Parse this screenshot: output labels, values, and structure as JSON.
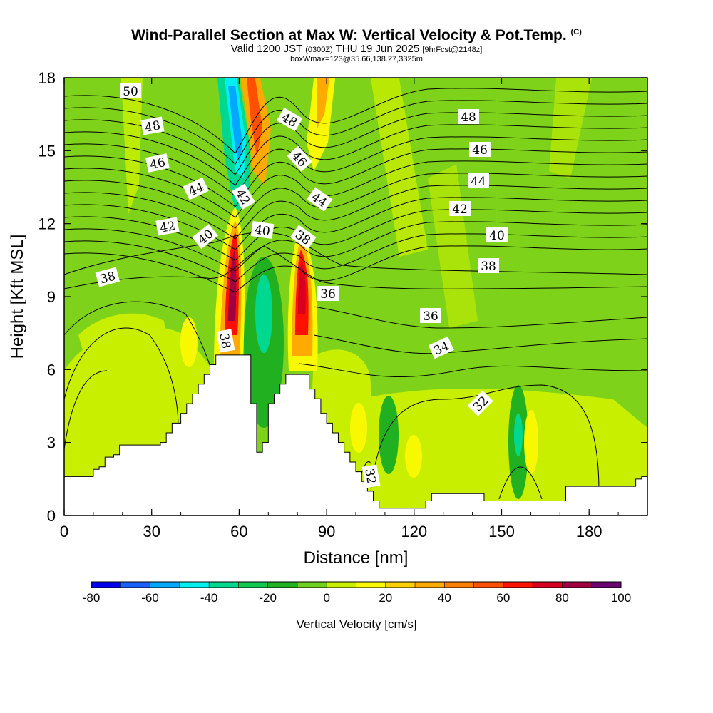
{
  "header": {
    "title": "Wind-Parallel Section at Max W: Vertical Velocity & Pot.Temp.",
    "copyright": "(C)",
    "valid_prefix": "Valid 1200 JST",
    "valid_utc": "(0300Z)",
    "valid_date": "THU 19 Jun 2025",
    "forecast": "[9hrFcst@2148z]",
    "box_info": "boxWmax=123@35.66,138.27,3325m"
  },
  "chart_data": {
    "type": "heatmap",
    "title": "Wind-Parallel Section at Max W: Vertical Velocity & Pot.Temp.",
    "xlabel": "Distance [nm]",
    "ylabel": "Height [Kft MSL]",
    "xlim": [
      0,
      200
    ],
    "ylim": [
      0,
      18
    ],
    "x_ticks": [
      "0",
      "30",
      "60",
      "90",
      "120",
      "150",
      "180"
    ],
    "x_tick_values": [
      0,
      30,
      60,
      90,
      120,
      150,
      180
    ],
    "y_ticks": [
      "0",
      "3",
      "6",
      "9",
      "12",
      "15",
      "18"
    ],
    "y_tick_values": [
      0,
      3,
      6,
      9,
      12,
      15,
      18
    ],
    "colorbar": {
      "label": "Vertical Velocity [cm/s]",
      "tick_labels": [
        "-80",
        "-60",
        "-40",
        "-20",
        "0",
        "20",
        "40",
        "60",
        "80",
        "100"
      ],
      "levels": [
        -80,
        -70,
        -60,
        -50,
        -40,
        -30,
        -20,
        -10,
        0,
        10,
        20,
        30,
        40,
        50,
        60,
        70,
        80,
        90,
        100
      ],
      "colors": [
        "#0000f0",
        "#1a60ff",
        "#00a8ff",
        "#00f0f0",
        "#00d890",
        "#10c850",
        "#20b020",
        "#70d020",
        "#c8ee00",
        "#f8f800",
        "#ffd000",
        "#ffaa00",
        "#ff8000",
        "#ff5000",
        "#ff1000",
        "#d80020",
        "#a00040",
        "#6a0070"
      ]
    },
    "contour_labels": [
      "50",
      "48",
      "46",
      "44",
      "42",
      "40",
      "38",
      "48",
      "46",
      "44",
      "42",
      "40",
      "38",
      "38",
      "36",
      "34",
      "32",
      "32",
      "48",
      "46",
      "44",
      "42",
      "40",
      "38",
      "36"
    ],
    "terrain_profile": {
      "x": [
        0,
        2,
        4,
        6,
        8,
        10,
        12,
        14,
        17,
        19,
        21,
        24,
        26,
        28,
        30,
        33,
        35,
        37,
        40,
        42,
        44,
        46,
        48,
        50,
        52,
        54,
        56,
        58,
        60,
        62,
        64,
        66,
        68,
        70,
        72,
        74,
        76,
        78,
        80,
        82,
        84,
        86,
        88,
        90,
        92,
        94,
        96,
        98,
        100,
        102,
        104,
        106,
        108,
        110,
        112,
        114,
        116,
        118,
        120,
        122,
        124,
        126,
        128,
        130,
        132,
        134,
        136,
        138,
        140,
        142,
        144,
        146,
        148,
        150,
        152,
        154,
        156,
        158,
        160,
        162,
        164,
        166,
        168,
        170,
        172,
        174,
        176,
        178,
        180,
        182,
        184,
        186,
        188,
        190,
        192,
        194,
        196,
        198,
        200
      ],
      "height": [
        1.6,
        1.6,
        1.6,
        1.6,
        1.6,
        1.9,
        2.0,
        2.4,
        2.5,
        2.9,
        2.9,
        2.9,
        2.9,
        2.9,
        2.9,
        3.0,
        3.4,
        3.8,
        4.2,
        4.6,
        5.0,
        5.4,
        5.8,
        6.2,
        6.6,
        6.6,
        6.6,
        6.6,
        6.6,
        6.6,
        4.6,
        2.6,
        3.0,
        4.6,
        5.0,
        5.4,
        5.8,
        5.8,
        5.8,
        5.8,
        5.2,
        4.8,
        4.2,
        3.8,
        3.4,
        3.0,
        2.6,
        2.2,
        1.8,
        1.4,
        1.0,
        0.6,
        0.3,
        0.3,
        0.3,
        0.3,
        0.3,
        0.3,
        0.3,
        0.3,
        0.6,
        0.9,
        0.9,
        0.9,
        0.9,
        0.9,
        0.9,
        0.9,
        0.9,
        0.9,
        0.6,
        0.6,
        0.6,
        0.6,
        0.6,
        0.6,
        0.6,
        0.6,
        0.6,
        0.6,
        0.6,
        0.6,
        0.6,
        0.6,
        1.2,
        1.2,
        1.2,
        1.2,
        1.2,
        1.2,
        1.2,
        1.2,
        1.2,
        1.2,
        1.2,
        1.2,
        1.5,
        1.6,
        1.6
      ]
    }
  }
}
